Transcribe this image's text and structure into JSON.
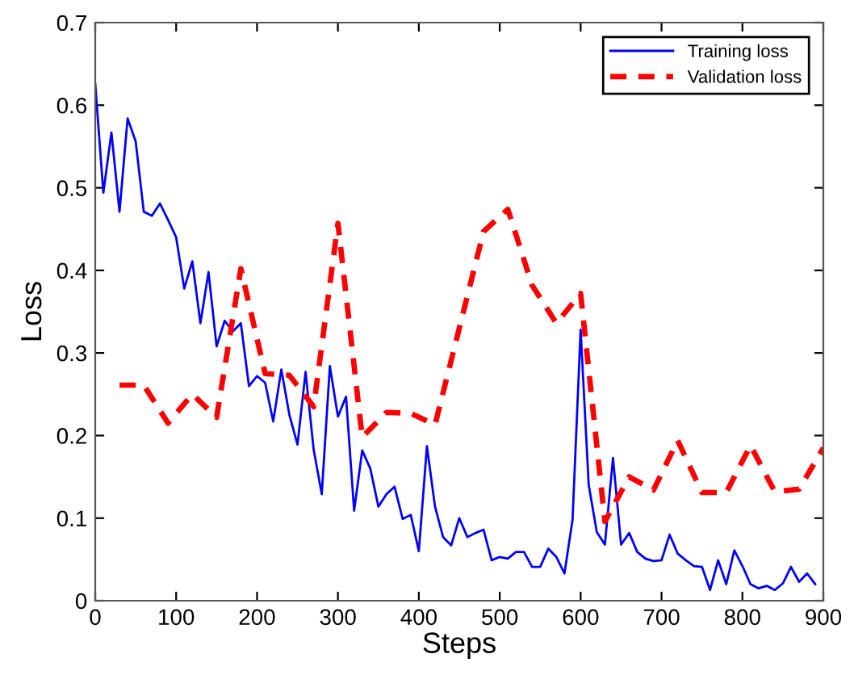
{
  "chart_data": {
    "type": "line",
    "xlabel": "Steps",
    "ylabel": "Loss",
    "xlim": [
      0,
      900
    ],
    "ylim": [
      0,
      0.7
    ],
    "xticks": [
      0,
      100,
      200,
      300,
      400,
      500,
      600,
      700,
      800,
      900
    ],
    "yticks": [
      0,
      0.1,
      0.2,
      0.3,
      0.4,
      0.5,
      0.6,
      0.7
    ],
    "grid": false,
    "legend": "top right",
    "series": [
      {
        "name": "Training loss",
        "color": "#0000ff",
        "line_style": "solid",
        "x": [
          0,
          10,
          20,
          30,
          40,
          50,
          60,
          70,
          80,
          90,
          100,
          110,
          120,
          130,
          140,
          150,
          160,
          170,
          180,
          190,
          200,
          210,
          220,
          230,
          240,
          250,
          260,
          270,
          280,
          290,
          300,
          310,
          320,
          330,
          340,
          350,
          360,
          370,
          380,
          390,
          400,
          410,
          420,
          430,
          440,
          450,
          460,
          470,
          480,
          490,
          500,
          510,
          520,
          530,
          540,
          550,
          560,
          570,
          580,
          590,
          600,
          610,
          620,
          630,
          640,
          650,
          660,
          670,
          680,
          690,
          700,
          710,
          720,
          730,
          740,
          750,
          760,
          770,
          780,
          790,
          800,
          810,
          820,
          830,
          840,
          850,
          860,
          870,
          880,
          890
        ],
        "values": [
          0.626,
          0.494,
          0.567,
          0.471,
          0.584,
          0.556,
          0.471,
          0.466,
          0.481,
          0.461,
          0.44,
          0.378,
          0.411,
          0.336,
          0.398,
          0.308,
          0.339,
          0.326,
          0.336,
          0.26,
          0.272,
          0.264,
          0.217,
          0.28,
          0.225,
          0.189,
          0.277,
          0.183,
          0.129,
          0.284,
          0.223,
          0.247,
          0.109,
          0.182,
          0.16,
          0.114,
          0.129,
          0.138,
          0.099,
          0.104,
          0.06,
          0.187,
          0.114,
          0.077,
          0.067,
          0.1,
          0.077,
          0.082,
          0.086,
          0.049,
          0.053,
          0.051,
          0.059,
          0.059,
          0.041,
          0.041,
          0.063,
          0.053,
          0.033,
          0.098,
          0.328,
          0.14,
          0.083,
          0.068,
          0.173,
          0.068,
          0.082,
          0.059,
          0.051,
          0.048,
          0.049,
          0.08,
          0.057,
          0.049,
          0.042,
          0.041,
          0.013,
          0.049,
          0.02,
          0.061,
          0.042,
          0.02,
          0.015,
          0.018,
          0.013,
          0.021,
          0.041,
          0.023,
          0.033,
          0.02
        ]
      },
      {
        "name": "Validation loss",
        "color": "#ff0000",
        "line_style": "dashed",
        "x": [
          30,
          60,
          90,
          120,
          150,
          180,
          210,
          240,
          270,
          300,
          330,
          360,
          390,
          420,
          480,
          510,
          540,
          570,
          600,
          630,
          660,
          690,
          720,
          750,
          780,
          810,
          840,
          870,
          900
        ],
        "values": [
          0.261,
          0.261,
          0.215,
          0.25,
          0.222,
          0.402,
          0.275,
          0.273,
          0.235,
          0.457,
          0.198,
          0.228,
          0.227,
          0.213,
          0.447,
          0.474,
          0.382,
          0.336,
          0.372,
          0.096,
          0.15,
          0.134,
          0.194,
          0.131,
          0.131,
          0.188,
          0.132,
          0.135,
          0.185
        ]
      }
    ]
  }
}
